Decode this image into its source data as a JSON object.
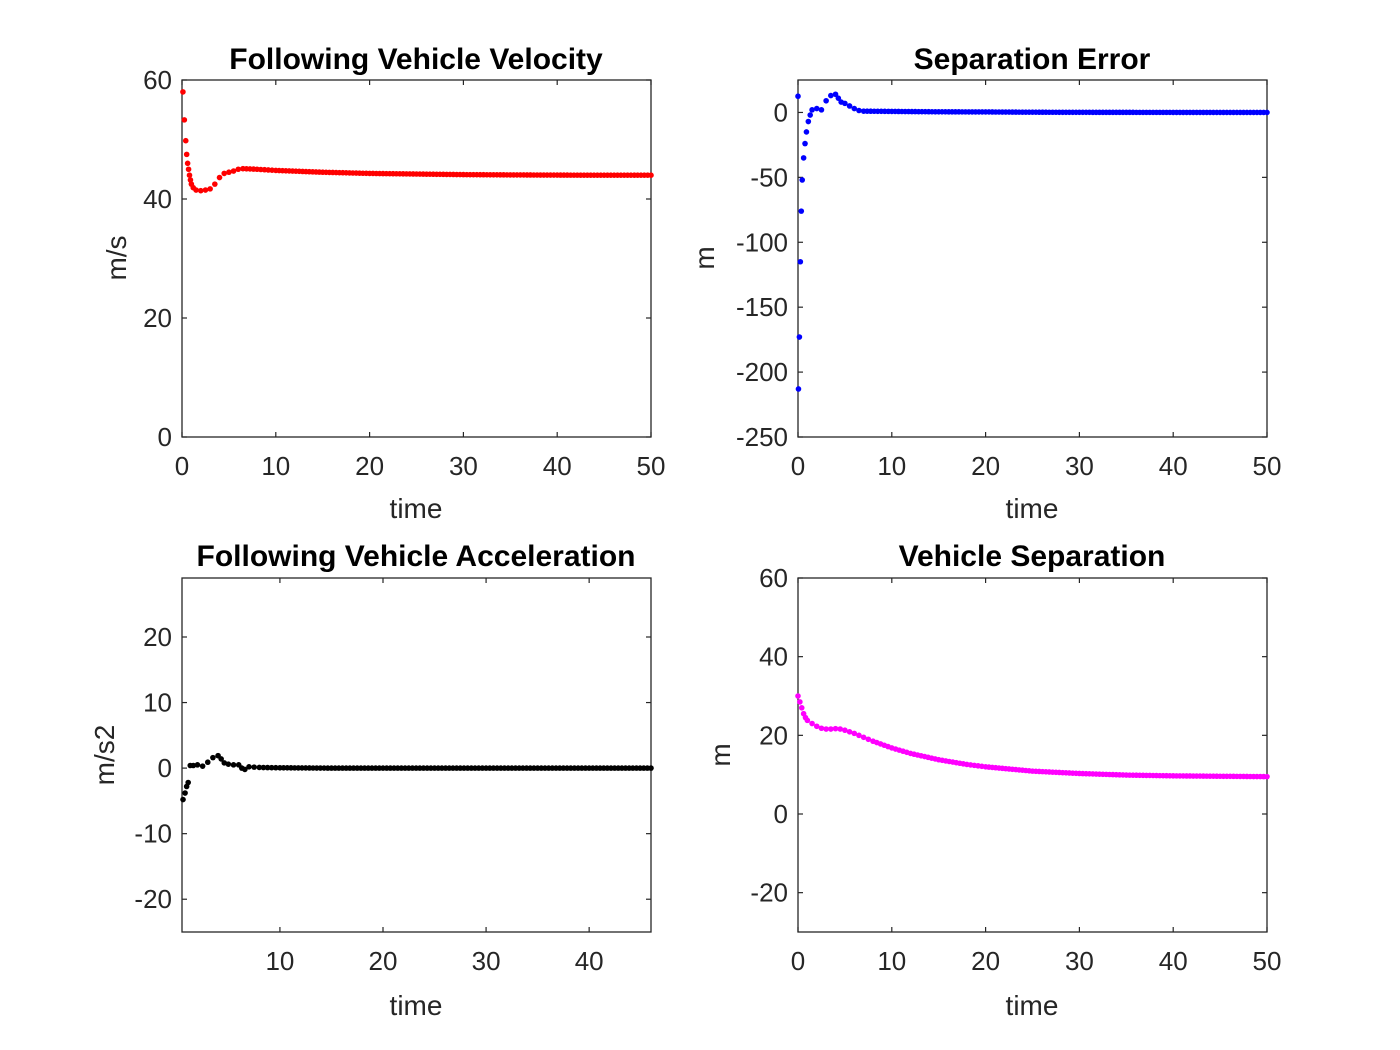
{
  "chart_data": [
    {
      "type": "scatter",
      "title": "Following Vehicle Velocity",
      "xlabel": "time",
      "ylabel": "m/s",
      "xlim": [
        0,
        50
      ],
      "ylim": [
        0,
        60
      ],
      "xticks": [
        0,
        10,
        20,
        30,
        40,
        50
      ],
      "yticks": [
        0,
        20,
        40,
        60
      ],
      "color": "#ff0000",
      "series": [
        {
          "name": "velocity",
          "points": [
            [
              0.1,
              58
            ],
            [
              0.25,
              53.3
            ],
            [
              0.4,
              49.8
            ],
            [
              0.5,
              47.5
            ],
            [
              0.6,
              46
            ],
            [
              0.7,
              45
            ],
            [
              0.8,
              44
            ],
            [
              0.9,
              43.2
            ],
            [
              1.0,
              42.5
            ],
            [
              1.2,
              41.9
            ],
            [
              1.5,
              41.5
            ],
            [
              2.0,
              41.4
            ],
            [
              2.5,
              41.5
            ],
            [
              3.0,
              41.7
            ],
            [
              3.5,
              42.5
            ],
            [
              4.0,
              43.6
            ],
            [
              4.5,
              44.3
            ],
            [
              5.0,
              44.5
            ],
            [
              5.5,
              44.7
            ],
            [
              6.0,
              45
            ],
            [
              6.5,
              45.1
            ],
            [
              8,
              45.0
            ],
            [
              10,
              44.8
            ],
            [
              15,
              44.5
            ],
            [
              20,
              44.3
            ],
            [
              25,
              44.2
            ],
            [
              30,
              44.1
            ],
            [
              35,
              44.05
            ],
            [
              40,
              44.02
            ],
            [
              45,
              44.0
            ],
            [
              50,
              44.0
            ]
          ]
        }
      ]
    },
    {
      "type": "scatter",
      "title": "Separation Error",
      "xlabel": "time",
      "ylabel": "m",
      "xlim": [
        0,
        50
      ],
      "ylim": [
        -250,
        25
      ],
      "xticks": [
        0,
        10,
        20,
        30,
        40,
        50
      ],
      "yticks": [
        -250,
        -200,
        -150,
        -100,
        -50,
        0
      ],
      "color": "#0000ff",
      "series": [
        {
          "name": "separation error",
          "points": [
            [
              0.0,
              12.5
            ],
            [
              0.05,
              -213
            ],
            [
              0.15,
              -173
            ],
            [
              0.25,
              -115
            ],
            [
              0.35,
              -76
            ],
            [
              0.45,
              -52
            ],
            [
              0.6,
              -35
            ],
            [
              0.75,
              -24
            ],
            [
              0.9,
              -15
            ],
            [
              1.1,
              -7
            ],
            [
              1.3,
              -2
            ],
            [
              1.5,
              2
            ],
            [
              2.0,
              3
            ],
            [
              2.5,
              2
            ],
            [
              3.0,
              9
            ],
            [
              3.5,
              13
            ],
            [
              4.0,
              14
            ],
            [
              4.3,
              11
            ],
            [
              4.6,
              8
            ],
            [
              5.0,
              7
            ],
            [
              5.5,
              5
            ],
            [
              6.0,
              3
            ],
            [
              6.5,
              1.5
            ],
            [
              7,
              1
            ],
            [
              10,
              0.8
            ],
            [
              15,
              0.5
            ],
            [
              20,
              0.4
            ],
            [
              25,
              0.2
            ],
            [
              30,
              0.1
            ],
            [
              40,
              0.05
            ],
            [
              50,
              0
            ]
          ]
        }
      ]
    },
    {
      "type": "scatter",
      "title": "Following Vehicle Acceleration",
      "xlabel": "time",
      "ylabel": "m/s2",
      "xlim": [
        0.5,
        46
      ],
      "ylim": [
        -25,
        29
      ],
      "xticks": [
        10,
        20,
        30,
        40
      ],
      "yticks": [
        -20,
        -10,
        0,
        10,
        20
      ],
      "color": "#000000",
      "series": [
        {
          "name": "acceleration",
          "points": [
            [
              0.6,
              -4.8
            ],
            [
              0.8,
              -3.8
            ],
            [
              0.95,
              -2.8
            ],
            [
              1.1,
              -2.2
            ],
            [
              1.3,
              0.4
            ],
            [
              1.6,
              0.4
            ],
            [
              2.0,
              0.5
            ],
            [
              2.5,
              0.3
            ],
            [
              3.0,
              0.9
            ],
            [
              3.5,
              1.6
            ],
            [
              4.0,
              1.9
            ],
            [
              4.3,
              1.4
            ],
            [
              4.6,
              0.8
            ],
            [
              5.0,
              0.6
            ],
            [
              5.5,
              0.5
            ],
            [
              6.0,
              0.5
            ],
            [
              6.3,
              0.0
            ],
            [
              6.6,
              -0.2
            ],
            [
              7.0,
              0.2
            ],
            [
              8,
              0.1
            ],
            [
              10,
              0.05
            ],
            [
              15,
              0
            ],
            [
              20,
              0
            ],
            [
              30,
              0
            ],
            [
              40,
              0
            ],
            [
              46,
              0
            ]
          ]
        }
      ]
    },
    {
      "type": "scatter",
      "title": "Vehicle Separation",
      "xlabel": "time",
      "ylabel": "m",
      "xlim": [
        0,
        50
      ],
      "ylim": [
        -30,
        60
      ],
      "xticks": [
        0,
        10,
        20,
        30,
        40,
        50
      ],
      "yticks": [
        -20,
        0,
        20,
        40,
        60
      ],
      "color": "#ff00ff",
      "series": [
        {
          "name": "separation",
          "points": [
            [
              0.0,
              30
            ],
            [
              0.2,
              28.5
            ],
            [
              0.4,
              27
            ],
            [
              0.6,
              25.5
            ],
            [
              0.8,
              24.5
            ],
            [
              1.0,
              23.8
            ],
            [
              1.5,
              23
            ],
            [
              2.0,
              22.3
            ],
            [
              2.5,
              21.8
            ],
            [
              3.0,
              21.6
            ],
            [
              3.5,
              21.6
            ],
            [
              4.0,
              21.7
            ],
            [
              4.5,
              21.6
            ],
            [
              5.0,
              21.3
            ],
            [
              6.0,
              20.5
            ],
            [
              7.0,
              19.5
            ],
            [
              8.0,
              18.5
            ],
            [
              10,
              16.8
            ],
            [
              12,
              15.4
            ],
            [
              15,
              13.8
            ],
            [
              18,
              12.6
            ],
            [
              20,
              12.0
            ],
            [
              25,
              10.9
            ],
            [
              30,
              10.3
            ],
            [
              35,
              9.9
            ],
            [
              40,
              9.7
            ],
            [
              45,
              9.6
            ],
            [
              50,
              9.5
            ]
          ]
        }
      ]
    }
  ]
}
